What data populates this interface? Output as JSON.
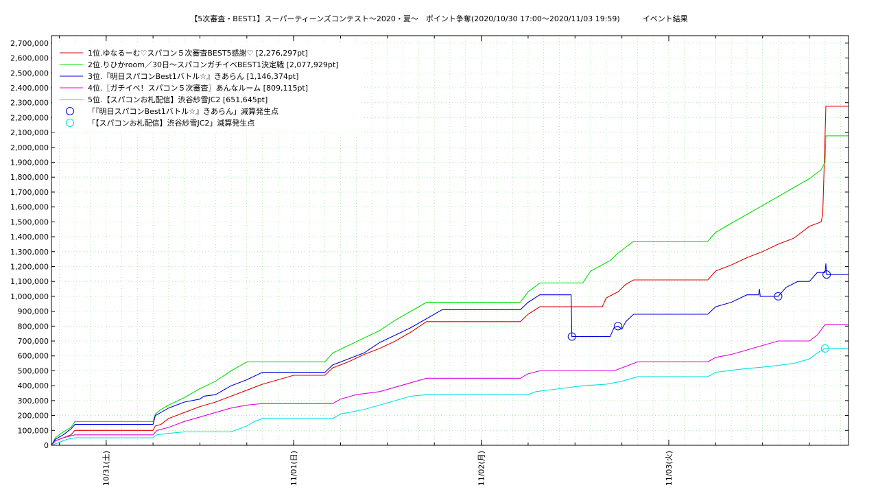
{
  "chart_data": {
    "type": "line",
    "title": "【5次審査・BEST1】スーパーティーンズコンテスト〜2020・夏〜　ポイント争奪(2020/10/30 17:00〜2020/11/03 19:59)　　　イベント結果",
    "xlabel": "",
    "ylabel": "",
    "ylim": [
      0,
      2750000
    ],
    "xlim_hours": [
      0,
      90.98
    ],
    "y_ticks": [
      0,
      100000,
      200000,
      300000,
      400000,
      500000,
      600000,
      700000,
      800000,
      900000,
      1000000,
      1100000,
      1200000,
      1300000,
      1400000,
      1500000,
      1600000,
      1700000,
      1800000,
      1900000,
      2000000,
      2100000,
      2200000,
      2300000,
      2400000,
      2500000,
      2600000,
      2700000
    ],
    "x_ticks": [
      {
        "hours": 7,
        "label": "10/31(土)"
      },
      {
        "hours": 31,
        "label": "11/01(日)"
      },
      {
        "hours": 55,
        "label": "11/02(月)"
      },
      {
        "hours": 79,
        "label": "11/03(火)"
      }
    ],
    "grid": true,
    "legend_position": "top-left",
    "series": [
      {
        "name": "1位.ゆなるーむ♡スパコン５次審査BEST5感謝♡ [2,276,297pt]",
        "color": "#e00000",
        "points": [
          [
            0,
            0
          ],
          [
            0.5,
            30000
          ],
          [
            1.5,
            50000
          ],
          [
            2.5,
            70000
          ],
          [
            3,
            100000
          ],
          [
            13,
            100000
          ],
          [
            13.3,
            130000
          ],
          [
            14,
            140000
          ],
          [
            15,
            180000
          ],
          [
            17,
            220000
          ],
          [
            19,
            260000
          ],
          [
            21,
            290000
          ],
          [
            23,
            330000
          ],
          [
            25,
            370000
          ],
          [
            27,
            410000
          ],
          [
            29,
            440000
          ],
          [
            31,
            470000
          ],
          [
            35,
            470000
          ],
          [
            36,
            520000
          ],
          [
            38,
            560000
          ],
          [
            40,
            610000
          ],
          [
            42,
            650000
          ],
          [
            44,
            700000
          ],
          [
            46,
            760000
          ],
          [
            48,
            830000
          ],
          [
            60,
            830000
          ],
          [
            61,
            880000
          ],
          [
            62.5,
            930000
          ],
          [
            70.5,
            930000
          ],
          [
            71,
            990000
          ],
          [
            72.5,
            1030000
          ],
          [
            73.5,
            1080000
          ],
          [
            74.5,
            1110000
          ],
          [
            84,
            1110000
          ],
          [
            85,
            1170000
          ],
          [
            87,
            1210000
          ],
          [
            89,
            1260000
          ],
          [
            91,
            1300000
          ],
          [
            93,
            1350000
          ],
          [
            95,
            1390000
          ],
          [
            97,
            1470000
          ],
          [
            98.5,
            1500000
          ],
          [
            98.7,
            1550000
          ],
          [
            98.9,
            1900000
          ],
          [
            99.1,
            2276297
          ],
          [
            102,
            2276297
          ]
        ]
      },
      {
        "name": "2位.りひかroom／30日〜スパコンガチイベBEST1決定戦 [2,077,929pt]",
        "color": "#00e000",
        "points": [
          [
            0,
            0
          ],
          [
            0.5,
            50000
          ],
          [
            1.5,
            90000
          ],
          [
            2.5,
            120000
          ],
          [
            3,
            160000
          ],
          [
            13,
            160000
          ],
          [
            13.3,
            210000
          ],
          [
            14,
            240000
          ],
          [
            15,
            270000
          ],
          [
            17,
            320000
          ],
          [
            19,
            380000
          ],
          [
            21,
            430000
          ],
          [
            23,
            500000
          ],
          [
            25,
            560000
          ],
          [
            35,
            560000
          ],
          [
            36,
            620000
          ],
          [
            38,
            670000
          ],
          [
            40,
            720000
          ],
          [
            42,
            770000
          ],
          [
            44,
            840000
          ],
          [
            46,
            900000
          ],
          [
            48,
            960000
          ],
          [
            60,
            960000
          ],
          [
            61,
            1030000
          ],
          [
            62.5,
            1090000
          ],
          [
            68,
            1090000
          ],
          [
            69,
            1170000
          ],
          [
            71.5,
            1240000
          ],
          [
            72.5,
            1290000
          ],
          [
            74.5,
            1370000
          ],
          [
            84,
            1370000
          ],
          [
            85,
            1430000
          ],
          [
            87,
            1490000
          ],
          [
            89,
            1550000
          ],
          [
            91,
            1610000
          ],
          [
            93,
            1670000
          ],
          [
            95,
            1730000
          ],
          [
            97,
            1790000
          ],
          [
            98.5,
            1850000
          ],
          [
            99,
            1900000
          ],
          [
            99.1,
            2077929
          ],
          [
            102,
            2077929
          ]
        ]
      },
      {
        "name": "3位.『明日スパコンBest1バトル☆』きあらん [1,146,374pt]",
        "color": "#0000e0",
        "points": [
          [
            0,
            0
          ],
          [
            0.5,
            40000
          ],
          [
            1.5,
            70000
          ],
          [
            2.5,
            110000
          ],
          [
            3,
            140000
          ],
          [
            13,
            140000
          ],
          [
            13.3,
            200000
          ],
          [
            14,
            220000
          ],
          [
            15,
            250000
          ],
          [
            17,
            290000
          ],
          [
            19,
            310000
          ],
          [
            19.5,
            330000
          ],
          [
            21,
            340000
          ],
          [
            23,
            400000
          ],
          [
            25,
            440000
          ],
          [
            27,
            490000
          ],
          [
            35,
            490000
          ],
          [
            36,
            540000
          ],
          [
            38,
            580000
          ],
          [
            40,
            620000
          ],
          [
            42,
            690000
          ],
          [
            44,
            740000
          ],
          [
            46,
            790000
          ],
          [
            48,
            850000
          ],
          [
            50,
            910000
          ],
          [
            60,
            910000
          ],
          [
            61,
            960000
          ],
          [
            62.5,
            1010000
          ],
          [
            66.5,
            1010000
          ],
          [
            66.6,
            730000
          ],
          [
            71.5,
            730000
          ],
          [
            72,
            790000
          ],
          [
            72.5,
            800000
          ],
          [
            73,
            780000
          ],
          [
            73.5,
            830000
          ],
          [
            74.5,
            880000
          ],
          [
            84,
            880000
          ],
          [
            85,
            930000
          ],
          [
            87,
            960000
          ],
          [
            89,
            1010000
          ],
          [
            90.5,
            1010000
          ],
          [
            90.6,
            1050000
          ],
          [
            90.7,
            1000000
          ],
          [
            93,
            1000000
          ],
          [
            94,
            1060000
          ],
          [
            95.5,
            1100000
          ],
          [
            97,
            1100000
          ],
          [
            98,
            1160000
          ],
          [
            99,
            1160000
          ],
          [
            99.1,
            1220000
          ],
          [
            99.2,
            1146374
          ],
          [
            102,
            1146374
          ]
        ]
      },
      {
        "name": "4位.〖ガチイベ！スパコン５次審査〗あんなルーム [809,115pt]",
        "color": "#e000e0",
        "points": [
          [
            0,
            0
          ],
          [
            0.5,
            30000
          ],
          [
            1.5,
            50000
          ],
          [
            3,
            70000
          ],
          [
            13,
            70000
          ],
          [
            13.5,
            100000
          ],
          [
            15,
            120000
          ],
          [
            17,
            160000
          ],
          [
            19,
            190000
          ],
          [
            21,
            220000
          ],
          [
            23,
            250000
          ],
          [
            25,
            270000
          ],
          [
            27,
            280000
          ],
          [
            36,
            280000
          ],
          [
            37,
            310000
          ],
          [
            39,
            340000
          ],
          [
            42,
            360000
          ],
          [
            44,
            390000
          ],
          [
            46,
            420000
          ],
          [
            48,
            450000
          ],
          [
            60,
            450000
          ],
          [
            61,
            480000
          ],
          [
            62.5,
            500000
          ],
          [
            72,
            500000
          ],
          [
            73,
            520000
          ],
          [
            74,
            540000
          ],
          [
            75,
            560000
          ],
          [
            84,
            560000
          ],
          [
            85,
            590000
          ],
          [
            87,
            610000
          ],
          [
            89,
            640000
          ],
          [
            91,
            670000
          ],
          [
            93,
            700000
          ],
          [
            97,
            700000
          ],
          [
            98,
            740000
          ],
          [
            99,
            810000
          ],
          [
            102,
            809115
          ]
        ]
      },
      {
        "name": "5位.【スパコンお札配信】渋谷紗雪JC2 [651,645pt]",
        "color": "#00e0e0",
        "points": [
          [
            0,
            0
          ],
          [
            1,
            20000
          ],
          [
            2,
            40000
          ],
          [
            3,
            50000
          ],
          [
            13,
            50000
          ],
          [
            13.5,
            70000
          ],
          [
            15,
            80000
          ],
          [
            17,
            90000
          ],
          [
            23,
            90000
          ],
          [
            24,
            110000
          ],
          [
            25,
            130000
          ],
          [
            26,
            160000
          ],
          [
            27,
            180000
          ],
          [
            36,
            180000
          ],
          [
            37,
            210000
          ],
          [
            40,
            240000
          ],
          [
            42,
            270000
          ],
          [
            44,
            300000
          ],
          [
            46,
            330000
          ],
          [
            48,
            340000
          ],
          [
            61,
            340000
          ],
          [
            62,
            360000
          ],
          [
            65,
            380000
          ],
          [
            68,
            400000
          ],
          [
            71,
            410000
          ],
          [
            73,
            430000
          ],
          [
            75,
            460000
          ],
          [
            84,
            460000
          ],
          [
            85,
            490000
          ],
          [
            88,
            510000
          ],
          [
            92,
            530000
          ],
          [
            95,
            550000
          ],
          [
            97,
            580000
          ],
          [
            98,
            620000
          ],
          [
            99,
            650000
          ],
          [
            102,
            651645
          ]
        ]
      }
    ],
    "markers": [
      {
        "name": "「『明日スパコンBest1バトル☆』きあらん」減算発生点",
        "color": "#0000e0",
        "points": [
          [
            66.6,
            730000
          ],
          [
            72.5,
            800000
          ],
          [
            93,
            1000000
          ],
          [
            99.2,
            1146374
          ]
        ]
      },
      {
        "name": "「【スパコンお札配信】渋谷紗雪JC2」減算発生点",
        "color": "#00e0e0",
        "points": [
          [
            99,
            650000
          ]
        ]
      }
    ]
  }
}
